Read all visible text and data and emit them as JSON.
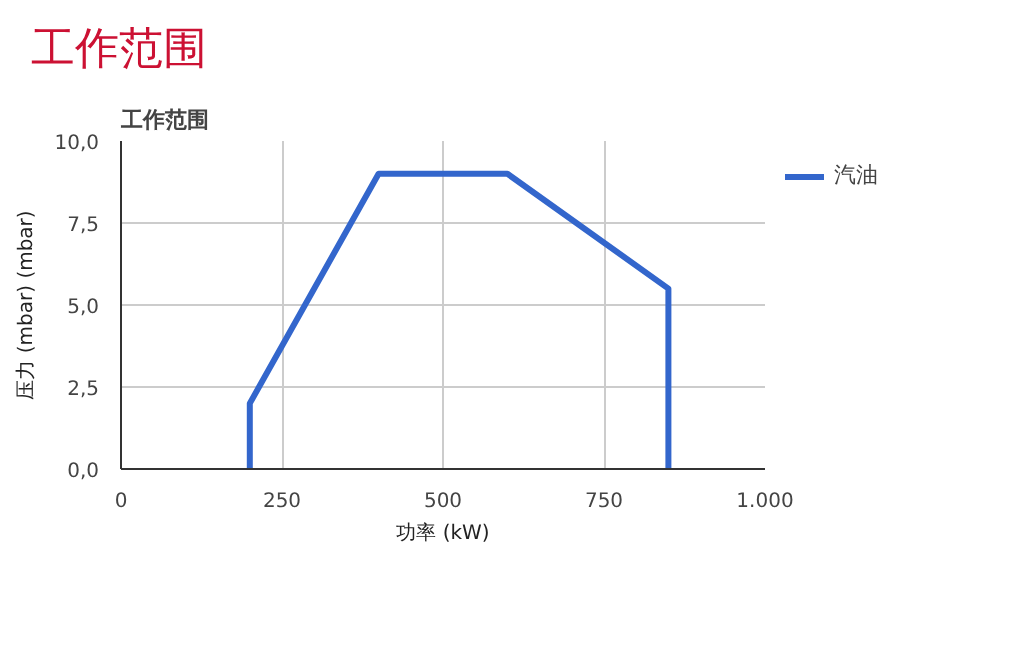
{
  "chart_data": {
    "type": "line",
    "title": "工作范围",
    "subtitle": "工作范围",
    "xlabel": "功率 (kW)",
    "ylabel": "压力 (mbar) (mbar)",
    "x": [
      200,
      200,
      400,
      600,
      850,
      850
    ],
    "series": [
      {
        "name": "汽油",
        "color": "#3366cc",
        "values": [
          0,
          2,
          9,
          9,
          5.5,
          0
        ]
      }
    ],
    "xlim": [
      0,
      1000
    ],
    "xticks": [
      0,
      250,
      500,
      750,
      {
        "value": 1000,
        "label": "1.000"
      }
    ],
    "ylim": [
      0,
      10
    ],
    "yticks": [
      {
        "value": 0,
        "label": "0,0"
      },
      {
        "value": 2.5,
        "label": "2,5"
      },
      {
        "value": 5,
        "label": "5,0"
      },
      {
        "value": 7.5,
        "label": "7,5"
      },
      {
        "value": 10,
        "label": "10,0"
      }
    ],
    "grid": true,
    "legend": "right",
    "marker": "none",
    "line_style": "solid"
  }
}
